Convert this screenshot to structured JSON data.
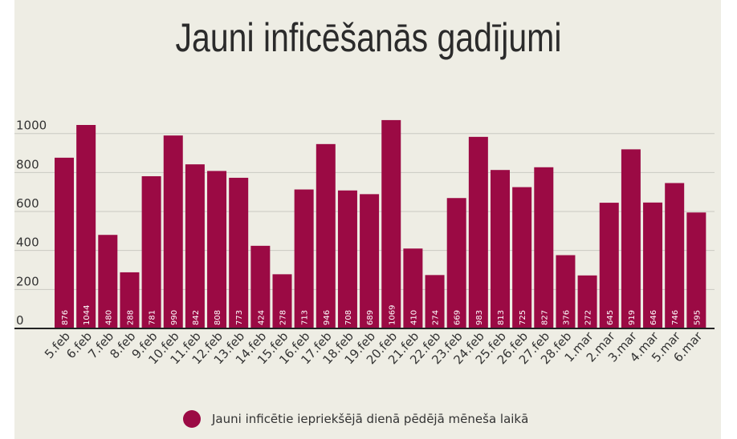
{
  "chart_data": {
    "type": "bar",
    "title": "Jauni inficēšanās gadījumi",
    "categories": [
      "5.feb",
      "6.feb",
      "7.feb",
      "8.feb",
      "9.feb",
      "10.feb",
      "11.feb",
      "12.feb",
      "13.feb",
      "14.feb",
      "15.feb",
      "16.feb",
      "17.feb",
      "18.feb",
      "19.feb",
      "20.feb",
      "21.feb",
      "22.feb",
      "23.feb",
      "24.feb",
      "25.feb",
      "26.feb",
      "27.feb",
      "28.feb",
      "1.mar",
      "2.mar",
      "3.mar",
      "4.mar",
      "5.mar",
      "6.mar"
    ],
    "series": [
      {
        "name": "Jauni inficētie iepriekšējā dienā pēdējā mēneša laikā",
        "values": [
          876,
          1044,
          480,
          288,
          781,
          990,
          842,
          808,
          773,
          424,
          278,
          713,
          946,
          708,
          689,
          1069,
          410,
          274,
          669,
          983,
          813,
          725,
          827,
          376,
          272,
          645,
          919,
          646,
          746,
          595
        ]
      }
    ],
    "yticks": [
      0,
      200,
      400,
      600,
      800,
      1000
    ],
    "ylim": [
      0,
      1100
    ],
    "grid": true,
    "legend_position": "bottom",
    "colors": {
      "bar": "#9b0a44",
      "background": "#eeede4",
      "grid": "#c9c9c2"
    }
  }
}
